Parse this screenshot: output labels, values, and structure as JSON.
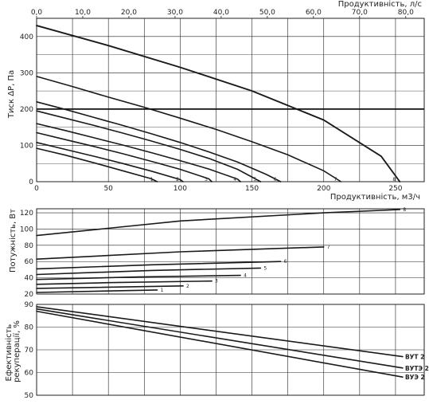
{
  "chart_data": [
    {
      "id": "pressure",
      "type": "line",
      "xlabel": "Продуктивність, м3/ч",
      "x2label": "Продуктивність, л/с",
      "ylabel": "Тиск ΔP, Па",
      "xlim": [
        0,
        270
      ],
      "x2lim": [
        0,
        84
      ],
      "ylim": [
        0,
        450
      ],
      "x_ticks": [
        "0",
        "50",
        "100",
        "150",
        "200",
        "250"
      ],
      "x2_ticks": [
        "0,0",
        "10,0",
        "20,0",
        "30,0",
        "40,0",
        "50,0",
        "60,0",
        "70,0",
        "80,0"
      ],
      "y_ticks": [
        "0",
        "100",
        "200",
        "300",
        "400"
      ],
      "reference_line": 200,
      "grid": true,
      "series": [
        {
          "name": "1",
          "x": [
            0,
            20,
            40,
            60,
            80,
            84
          ],
          "y": [
            92,
            73,
            52,
            30,
            8,
            0
          ]
        },
        {
          "name": "2",
          "x": [
            0,
            20,
            40,
            60,
            80,
            100,
            102
          ],
          "y": [
            108,
            89,
            70,
            50,
            29,
            6,
            0
          ]
        },
        {
          "name": "3",
          "x": [
            0,
            20,
            40,
            60,
            80,
            100,
            120,
            122
          ],
          "y": [
            135,
            116,
            97,
            77,
            56,
            34,
            8,
            0
          ]
        },
        {
          "name": "4",
          "x": [
            0,
            20,
            40,
            60,
            80,
            100,
            120,
            140,
            142
          ],
          "y": [
            160,
            141,
            121,
            101,
            80,
            58,
            35,
            7,
            0
          ]
        },
        {
          "name": "5",
          "x": [
            0,
            20,
            40,
            60,
            80,
            100,
            120,
            140,
            156
          ],
          "y": [
            195,
            175,
            155,
            134,
            112,
            89,
            64,
            34,
            0
          ]
        },
        {
          "name": "6",
          "x": [
            0,
            20,
            40,
            60,
            80,
            100,
            120,
            140,
            160,
            170
          ],
          "y": [
            220,
            199,
            177,
            155,
            132,
            108,
            82,
            54,
            20,
            0
          ]
        },
        {
          "name": "7",
          "x": [
            0,
            25,
            50,
            75,
            100,
            125,
            150,
            175,
            200,
            212
          ],
          "y": [
            290,
            262,
            233,
            205,
            175,
            144,
            110,
            74,
            30,
            0
          ]
        },
        {
          "name": "8",
          "x": [
            0,
            50,
            100,
            150,
            200,
            240,
            253
          ],
          "y": [
            430,
            375,
            315,
            250,
            170,
            70,
            0
          ]
        }
      ]
    },
    {
      "id": "power",
      "type": "line",
      "ylabel": "Потужність, Вт",
      "xlim": [
        0,
        270
      ],
      "ylim": [
        20,
        125
      ],
      "y_ticks": [
        "20",
        "40",
        "60",
        "80",
        "100",
        "120"
      ],
      "grid": true,
      "series": [
        {
          "name": "1",
          "x": [
            0,
            84
          ],
          "y": [
            22,
            25
          ]
        },
        {
          "name": "2",
          "x": [
            0,
            102
          ],
          "y": [
            27,
            30
          ]
        },
        {
          "name": "3",
          "x": [
            0,
            50,
            122
          ],
          "y": [
            32,
            34,
            36
          ]
        },
        {
          "name": "4",
          "x": [
            0,
            70,
            142
          ],
          "y": [
            38,
            41,
            43
          ]
        },
        {
          "name": "5",
          "x": [
            0,
            80,
            156
          ],
          "y": [
            44,
            49,
            52
          ]
        },
        {
          "name": "6",
          "x": [
            0,
            80,
            170
          ],
          "y": [
            51,
            56,
            60
          ]
        },
        {
          "name": "7",
          "x": [
            0,
            100,
            200
          ],
          "y": [
            63,
            72,
            78
          ]
        },
        {
          "name": "8",
          "x": [
            0,
            100,
            200,
            253
          ],
          "y": [
            92,
            110,
            120,
            124
          ]
        }
      ]
    },
    {
      "id": "efficiency",
      "type": "line",
      "ylabel": "Ефективність рекуперації, %",
      "xlim": [
        0,
        270
      ],
      "ylim": [
        50,
        90
      ],
      "y_ticks": [
        "50",
        "60",
        "70",
        "80",
        "90"
      ],
      "grid": true,
      "series": [
        {
          "name": "ВУТ 2",
          "x": [
            0,
            255
          ],
          "y": [
            89,
            67
          ]
        },
        {
          "name": "ВУТЭ 2",
          "x": [
            0,
            255
          ],
          "y": [
            88,
            62
          ]
        },
        {
          "name": "ВУЭ 2",
          "x": [
            0,
            255
          ],
          "y": [
            87,
            58
          ]
        }
      ]
    }
  ]
}
